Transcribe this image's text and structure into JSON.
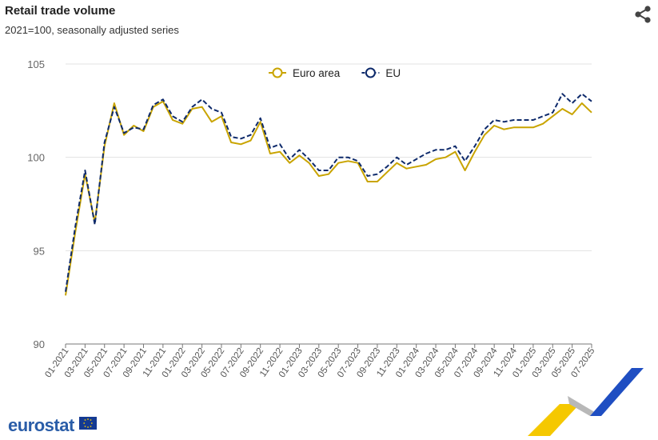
{
  "header": {
    "title": "Retail trade volume",
    "subtitle": "2021=100, seasonally adjusted series",
    "share_icon": "share-icon"
  },
  "branding": {
    "logo_text": "eurostat",
    "flag_icon": "eu-flag-icon"
  },
  "colors": {
    "euro_area": "#c9a400",
    "eu": "#0e2a6b",
    "grid": "#e3e3e3"
  },
  "chart_data": {
    "type": "line",
    "title": "Retail trade volume",
    "subtitle": "2021=100, seasonally adjusted series",
    "ylim": [
      90,
      105
    ],
    "yticks": [
      90,
      95,
      100,
      105
    ],
    "legend": "top-center",
    "grid": true,
    "x": [
      "01-2021",
      "02-2021",
      "03-2021",
      "04-2021",
      "05-2021",
      "06-2021",
      "07-2021",
      "08-2021",
      "09-2021",
      "10-2021",
      "11-2021",
      "12-2021",
      "01-2022",
      "02-2022",
      "03-2022",
      "04-2022",
      "05-2022",
      "06-2022",
      "07-2022",
      "08-2022",
      "09-2022",
      "10-2022",
      "11-2022",
      "12-2022",
      "01-2023",
      "02-2023",
      "03-2023",
      "04-2023",
      "05-2023",
      "06-2023",
      "07-2023",
      "08-2023",
      "09-2023",
      "10-2023",
      "11-2023",
      "12-2023",
      "01-2024",
      "02-2024",
      "03-2024",
      "04-2024",
      "05-2024",
      "06-2024",
      "07-2024",
      "08-2024",
      "09-2024",
      "10-2024",
      "11-2024",
      "12-2024",
      "01-2025",
      "02-2025",
      "03-2025",
      "04-2025",
      "05-2025",
      "06-2025",
      "07-2025"
    ],
    "xtick_labels": [
      "01-2021",
      "03-2021",
      "05-2021",
      "07-2021",
      "09-2021",
      "11-2021",
      "01-2022",
      "03-2022",
      "05-2022",
      "07-2022",
      "09-2022",
      "11-2022",
      "01-2023",
      "03-2023",
      "05-2023",
      "07-2023",
      "09-2023",
      "11-2023",
      "01-2024",
      "03-2024",
      "05-2024",
      "07-2024",
      "09-2024",
      "11-2024",
      "01-2025",
      "03-2025",
      "05-2025",
      "07-2025"
    ],
    "series": [
      {
        "name": "Euro area",
        "style": "solid",
        "values": [
          92.6,
          96.0,
          99.1,
          96.5,
          100.6,
          102.9,
          101.2,
          101.7,
          101.4,
          102.7,
          103.0,
          102.0,
          101.8,
          102.6,
          102.7,
          101.9,
          102.2,
          100.8,
          100.7,
          100.9,
          101.9,
          100.2,
          100.3,
          99.7,
          100.1,
          99.7,
          99.0,
          99.1,
          99.7,
          99.8,
          99.7,
          98.7,
          98.7,
          99.2,
          99.7,
          99.4,
          99.5,
          99.6,
          99.9,
          100.0,
          100.3,
          99.3,
          100.3,
          101.2,
          101.7,
          101.5,
          101.6,
          101.6,
          101.6,
          101.8,
          102.2,
          102.6,
          102.3,
          102.9,
          102.4
        ]
      },
      {
        "name": "EU",
        "style": "dashed",
        "values": [
          92.8,
          96.3,
          99.3,
          96.4,
          100.8,
          102.7,
          101.3,
          101.6,
          101.5,
          102.8,
          103.1,
          102.2,
          101.9,
          102.7,
          103.1,
          102.6,
          102.4,
          101.1,
          101.0,
          101.2,
          102.1,
          100.5,
          100.7,
          99.9,
          100.4,
          99.9,
          99.3,
          99.3,
          100.0,
          100.0,
          99.8,
          99.0,
          99.1,
          99.5,
          100.0,
          99.6,
          99.9,
          100.2,
          100.4,
          100.4,
          100.6,
          99.8,
          100.6,
          101.5,
          102.0,
          101.9,
          102.0,
          102.0,
          102.0,
          102.2,
          102.4,
          103.4,
          102.9,
          103.4,
          103.0
        ]
      }
    ]
  }
}
